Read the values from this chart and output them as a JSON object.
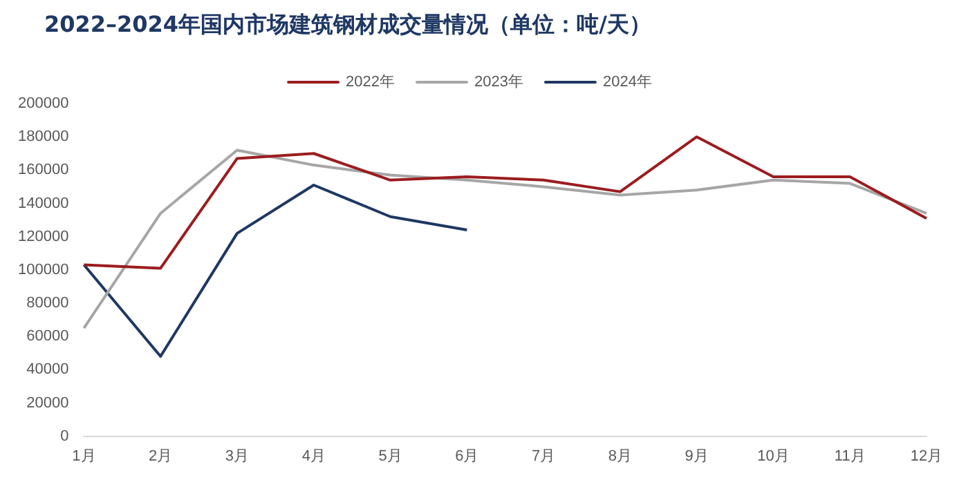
{
  "chart_data": {
    "type": "line",
    "title": "2022–2024年国内市场建筑钢材成交量情况（单位：吨/天）",
    "categories": [
      "1月",
      "2月",
      "3月",
      "4月",
      "5月",
      "6月",
      "7月",
      "8月",
      "9月",
      "10月",
      "11月",
      "12月"
    ],
    "series": [
      {
        "name": "2022年",
        "color": "#9b1c1f",
        "values": [
          103000,
          101000,
          167000,
          170000,
          154000,
          156000,
          154000,
          147000,
          180000,
          156000,
          156000,
          131000
        ]
      },
      {
        "name": "2023年",
        "color": "#a6a6a6",
        "values": [
          65000,
          134000,
          172000,
          163000,
          157000,
          154000,
          150000,
          145000,
          148000,
          154000,
          152000,
          134000
        ]
      },
      {
        "name": "2024年",
        "color": "#1f3864",
        "values": [
          103000,
          48000,
          122000,
          151000,
          132000,
          124000,
          null,
          null,
          null,
          null,
          null,
          null
        ]
      }
    ],
    "ylim": [
      0,
      200000
    ],
    "yticks": [
      0,
      20000,
      40000,
      60000,
      80000,
      100000,
      120000,
      140000,
      160000,
      180000,
      200000
    ],
    "grid": false,
    "legend": "top",
    "marker": "none",
    "line_style": "solid"
  }
}
